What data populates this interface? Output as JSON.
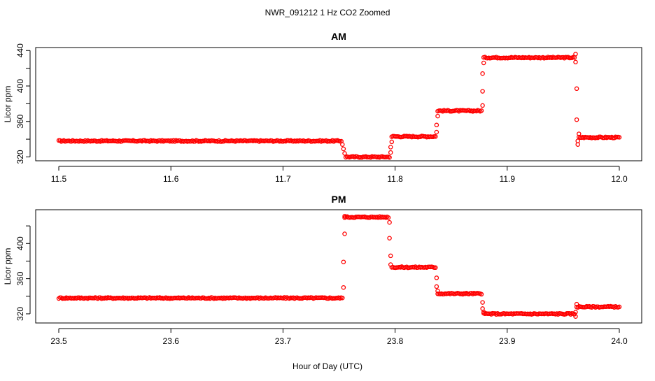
{
  "figure": {
    "title": "NWR_091212  1 Hz CO2 Zoomed",
    "xlabel": "Hour of Day (UTC)"
  },
  "chart_data": [
    {
      "type": "scatter",
      "title": "AM",
      "ylabel": "Licor ppm",
      "xlim": [
        11.5,
        12.0
      ],
      "ylim": [
        318,
        441
      ],
      "xticks": [
        "11.5",
        "11.6",
        "11.7",
        "11.8",
        "11.9",
        "12.0"
      ],
      "xtick_values": [
        11.5,
        11.6,
        11.7,
        11.8,
        11.9,
        12.0
      ],
      "yticks": [
        "320",
        "360",
        "400",
        "440"
      ],
      "ytick_values": [
        320,
        340,
        360,
        380,
        400,
        420,
        440
      ],
      "ytick_labeled": [
        320,
        360,
        400,
        440
      ],
      "marker": "open-circle",
      "color": "#ff0000",
      "segments": [
        {
          "x_start": 11.5,
          "x_end": 11.752,
          "y": 338
        },
        {
          "x_start": 11.756,
          "x_end": 11.795,
          "y": 320
        },
        {
          "x_start": 11.797,
          "x_end": 11.836,
          "y": 343
        },
        {
          "x_start": 11.838,
          "x_end": 11.877,
          "y": 372
        },
        {
          "x_start": 11.879,
          "x_end": 11.96,
          "y": 432
        },
        {
          "x_start": 11.964,
          "x_end": 12.0,
          "y": 342
        }
      ],
      "transitions": [
        {
          "x": 11.753,
          "y": 334
        },
        {
          "x": 11.754,
          "y": 329
        },
        {
          "x": 11.755,
          "y": 324
        },
        {
          "x": 11.796,
          "y": 325
        },
        {
          "x": 11.796,
          "y": 331
        },
        {
          "x": 11.797,
          "y": 337
        },
        {
          "x": 11.837,
          "y": 348
        },
        {
          "x": 11.837,
          "y": 356
        },
        {
          "x": 11.838,
          "y": 366
        },
        {
          "x": 11.878,
          "y": 378
        },
        {
          "x": 11.878,
          "y": 394
        },
        {
          "x": 11.878,
          "y": 414
        },
        {
          "x": 11.879,
          "y": 426
        },
        {
          "x": 11.961,
          "y": 436
        },
        {
          "x": 11.961,
          "y": 427
        },
        {
          "x": 11.962,
          "y": 397
        },
        {
          "x": 11.962,
          "y": 362
        },
        {
          "x": 11.963,
          "y": 338
        },
        {
          "x": 11.963,
          "y": 334
        },
        {
          "x": 11.964,
          "y": 346
        }
      ]
    },
    {
      "type": "scatter",
      "title": "PM",
      "ylabel": "Licor ppm",
      "xlim": [
        23.5,
        24.0
      ],
      "ylim": [
        312,
        436
      ],
      "xticks": [
        "23.5",
        "23.6",
        "23.7",
        "23.8",
        "23.9",
        "24.0"
      ],
      "xtick_values": [
        23.5,
        23.6,
        23.7,
        23.8,
        23.9,
        24.0
      ],
      "yticks": [
        "320",
        "360",
        "400"
      ],
      "ytick_values": [
        320,
        340,
        360,
        380,
        400,
        420
      ],
      "ytick_labeled": [
        320,
        360,
        400
      ],
      "marker": "open-circle",
      "color": "#ff0000",
      "segments": [
        {
          "x_start": 23.5,
          "x_end": 23.753,
          "y": 338
        },
        {
          "x_start": 23.755,
          "x_end": 23.794,
          "y": 430
        },
        {
          "x_start": 23.797,
          "x_end": 23.836,
          "y": 373
        },
        {
          "x_start": 23.838,
          "x_end": 23.877,
          "y": 343
        },
        {
          "x_start": 23.879,
          "x_end": 23.96,
          "y": 320
        },
        {
          "x_start": 23.962,
          "x_end": 24.0,
          "y": 328
        }
      ],
      "transitions": [
        {
          "x": 23.754,
          "y": 350
        },
        {
          "x": 23.754,
          "y": 379
        },
        {
          "x": 23.755,
          "y": 411
        },
        {
          "x": 23.755,
          "y": 431
        },
        {
          "x": 23.795,
          "y": 424
        },
        {
          "x": 23.795,
          "y": 406
        },
        {
          "x": 23.796,
          "y": 386
        },
        {
          "x": 23.796,
          "y": 376
        },
        {
          "x": 23.837,
          "y": 361
        },
        {
          "x": 23.837,
          "y": 351
        },
        {
          "x": 23.838,
          "y": 346
        },
        {
          "x": 23.878,
          "y": 333
        },
        {
          "x": 23.878,
          "y": 326
        },
        {
          "x": 23.879,
          "y": 322
        },
        {
          "x": 23.961,
          "y": 317
        },
        {
          "x": 23.961,
          "y": 322
        },
        {
          "x": 23.962,
          "y": 331
        }
      ]
    }
  ]
}
